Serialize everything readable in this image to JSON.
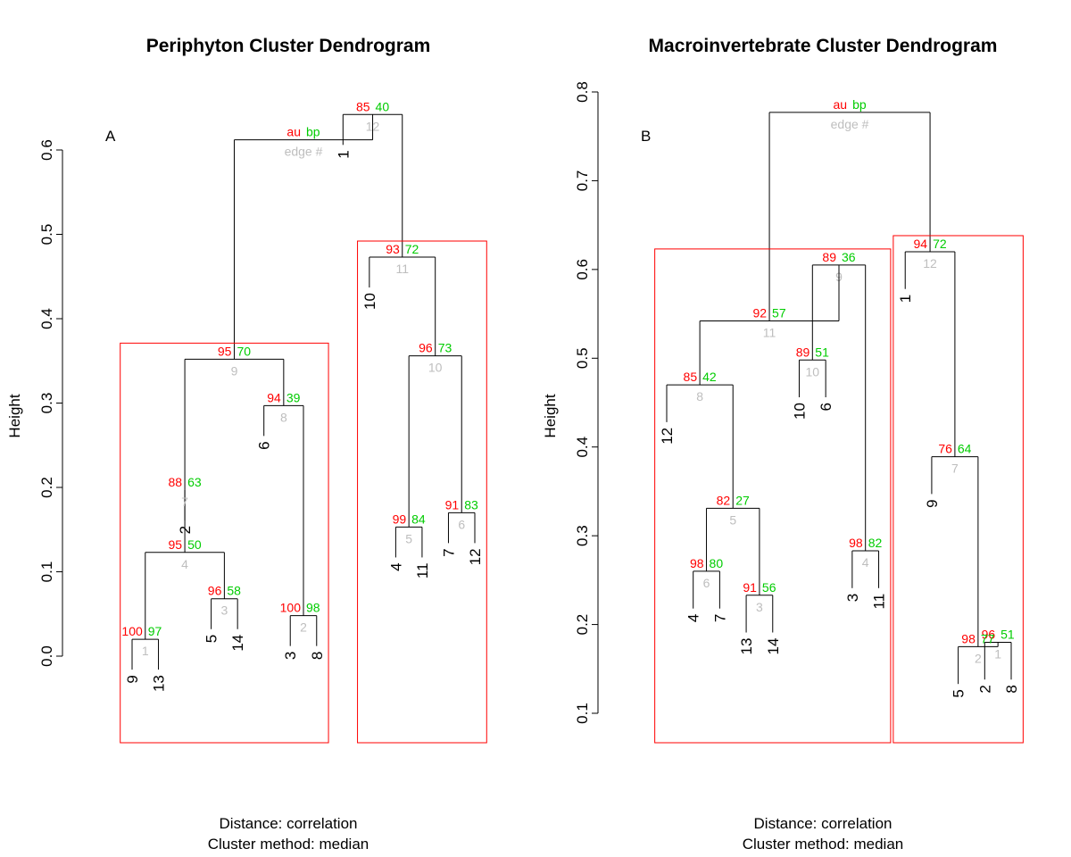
{
  "colors": {
    "au": "#ff0000",
    "bp": "#00cc00",
    "edge": "#bebebe",
    "rect": "#ff0000",
    "ink": "#000000"
  },
  "legend": {
    "au": "au",
    "bp": "bp",
    "edge": "edge #"
  },
  "chart_data": [
    {
      "type": "dendrogram",
      "panel": "A",
      "title": "Periphyton Cluster Dendrogram",
      "ylabel": "Height",
      "footer_line1": "Distance:  correlation",
      "footer_line2": "Cluster method: median",
      "ylim": [
        0,
        0.6
      ],
      "yticks": [
        "0.0",
        "0.1",
        "0.2",
        "0.3",
        "0.4",
        "0.5",
        "0.6"
      ],
      "leaf_order": [
        "9",
        "13",
        "2",
        "5",
        "14",
        "6",
        "3",
        "8",
        "1",
        "10",
        "4",
        "11",
        "7",
        "12"
      ],
      "merges": [
        {
          "edge": "1",
          "height": 0.02,
          "left": "9",
          "right": "13",
          "au": "100",
          "bp": "97"
        },
        {
          "edge": "2",
          "height": 0.048,
          "left": "3",
          "right": "8",
          "au": "100",
          "bp": "98"
        },
        {
          "edge": "3",
          "height": 0.068,
          "left": "5",
          "right": "14",
          "au": "96",
          "bp": "58"
        },
        {
          "edge": "4",
          "height": 0.123,
          "left": "e1",
          "right": "e3",
          "au": "95",
          "bp": "50"
        },
        {
          "edge": "5",
          "height": 0.153,
          "left": "4",
          "right": "11",
          "au": "99",
          "bp": "84"
        },
        {
          "edge": "6",
          "height": 0.17,
          "left": "7",
          "right": "12",
          "au": "91",
          "bp": "83"
        },
        {
          "edge": "7",
          "height": 0.197,
          "left": "2",
          "right": "e4",
          "au": "88",
          "bp": "63"
        },
        {
          "edge": "8",
          "height": 0.297,
          "left": "6",
          "right": "e2",
          "au": "94",
          "bp": "39"
        },
        {
          "edge": "9",
          "height": 0.352,
          "left": "e7",
          "right": "e8",
          "au": "95",
          "bp": "70"
        },
        {
          "edge": "10",
          "height": 0.356,
          "left": "e5",
          "right": "e6",
          "au": "96",
          "bp": "73"
        },
        {
          "edge": "11",
          "height": 0.473,
          "left": "10",
          "right": "e10",
          "au": "93",
          "bp": "72"
        },
        {
          "edge": "12",
          "height": 0.642,
          "left": "1",
          "right": "e11",
          "au": "85",
          "bp": "40"
        },
        {
          "edge": "",
          "height": 0.612,
          "left": "e9",
          "right": "e12",
          "au": "au",
          "bp": "bp",
          "legend": true
        }
      ],
      "clusters": [
        [
          "9",
          "13",
          "2",
          "5",
          "14",
          "6",
          "3",
          "8"
        ],
        [
          "10",
          "4",
          "11",
          "7",
          "12"
        ]
      ]
    },
    {
      "type": "dendrogram",
      "panel": "B",
      "title": "Macroinvertebrate Cluster Dendrogram",
      "ylabel": "Height",
      "footer_line1": "Distance:  correlation",
      "footer_line2": "Cluster method: median",
      "ylim": [
        0.1,
        0.8
      ],
      "yticks": [
        "0.1",
        "0.2",
        "0.3",
        "0.4",
        "0.5",
        "0.6",
        "0.7",
        "0.8"
      ],
      "leaf_order": [
        "12",
        "4",
        "7",
        "13",
        "14",
        "10",
        "6",
        "3",
        "11",
        "1",
        "9",
        "5",
        "2",
        "8"
      ],
      "merges": [
        {
          "edge": "1",
          "height": 0.18,
          "left": "2",
          "right": "8",
          "au": "96",
          "bp": "51"
        },
        {
          "edge": "2",
          "height": 0.175,
          "left": "5",
          "right": "e1",
          "au": "98",
          "bp": "77"
        },
        {
          "edge": "3",
          "height": 0.233,
          "left": "13",
          "right": "14",
          "au": "91",
          "bp": "56"
        },
        {
          "edge": "4",
          "height": 0.283,
          "left": "3",
          "right": "11",
          "au": "98",
          "bp": "82"
        },
        {
          "edge": "6",
          "height": 0.26,
          "left": "4",
          "right": "7",
          "au": "98",
          "bp": "80"
        },
        {
          "edge": "5",
          "height": 0.331,
          "left": "e6",
          "right": "e3",
          "au": "82",
          "bp": "27"
        },
        {
          "edge": "7",
          "height": 0.389,
          "left": "9",
          "right": "e2",
          "au": "76",
          "bp": "64"
        },
        {
          "edge": "8",
          "height": 0.47,
          "left": "12",
          "right": "e5",
          "au": "85",
          "bp": "42"
        },
        {
          "edge": "10",
          "height": 0.498,
          "left": "10",
          "right": "6",
          "au": "89",
          "bp": "51"
        },
        {
          "edge": "9",
          "height": 0.605,
          "left": "e10",
          "right": "e4",
          "au": "89",
          "bp": "36"
        },
        {
          "edge": "11",
          "height": 0.542,
          "left": "e8",
          "right": "e9",
          "au": "92",
          "bp": "57"
        },
        {
          "edge": "12",
          "height": 0.62,
          "left": "1",
          "right": "e7",
          "au": "94",
          "bp": "72"
        },
        {
          "edge": "",
          "height": 0.777,
          "left": "e11",
          "right": "e12",
          "au": "au",
          "bp": "bp",
          "legend": true
        }
      ],
      "clusters": [
        [
          "12",
          "4",
          "7",
          "13",
          "14",
          "10",
          "6",
          "3",
          "11"
        ],
        [
          "1",
          "9",
          "5",
          "2",
          "8"
        ]
      ]
    }
  ]
}
